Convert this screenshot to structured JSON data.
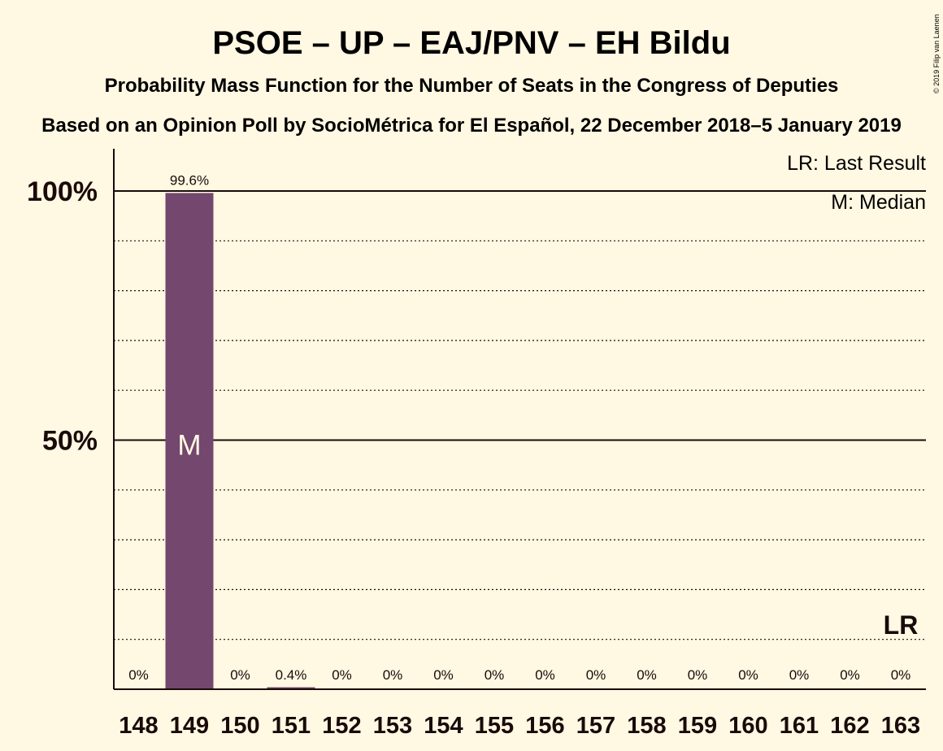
{
  "chart_data": {
    "type": "bar",
    "title": "PSOE – UP – EAJ/PNV – EH Bildu",
    "subtitle": "Probability Mass Function for the Number of Seats in the Congress of Deputies",
    "subtitle2": "Based on an Opinion Poll by SocioMétrica for El Español, 22 December 2018–5 January 2019",
    "copyright": "© 2019 Filip van Laenen",
    "categories": [
      "148",
      "149",
      "150",
      "151",
      "152",
      "153",
      "154",
      "155",
      "156",
      "157",
      "158",
      "159",
      "160",
      "161",
      "162",
      "163"
    ],
    "values": [
      0,
      99.6,
      0,
      0.4,
      0,
      0,
      0,
      0,
      0,
      0,
      0,
      0,
      0,
      0,
      0,
      0
    ],
    "value_labels": [
      "0%",
      "99.6%",
      "0%",
      "0.4%",
      "0%",
      "0%",
      "0%",
      "0%",
      "0%",
      "0%",
      "0%",
      "0%",
      "0%",
      "0%",
      "0%",
      "0%"
    ],
    "ylim": [
      0,
      100
    ],
    "yticks": [
      {
        "value": 50,
        "label": "50%"
      },
      {
        "value": 100,
        "label": "100%"
      }
    ],
    "minor_grid": [
      10,
      20,
      30,
      40,
      60,
      70,
      80,
      90
    ],
    "median_category": "149",
    "median_marker": "M",
    "last_result_category": "163",
    "last_result_marker": "LR",
    "legend": [
      "LR: Last Result",
      "M: Median"
    ],
    "legend_position": "top-right",
    "colors": {
      "bar": "#74476E",
      "background": "#FFF8E2",
      "text": "#1a0a0a",
      "marker_text": "#FFF8E2"
    }
  }
}
